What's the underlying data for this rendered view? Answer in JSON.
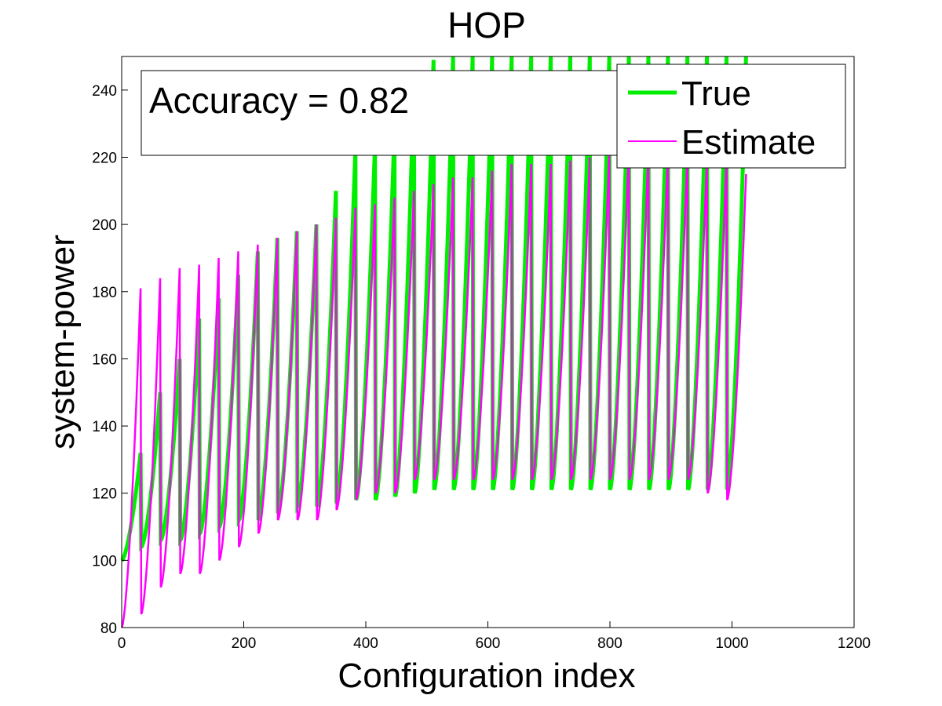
{
  "chart_data": {
    "type": "line",
    "title": "HOP",
    "xlabel": "Configuration index",
    "ylabel": "system-power",
    "xlim": [
      0,
      1200
    ],
    "ylim": [
      80,
      250
    ],
    "x_ticks": [
      0,
      200,
      400,
      600,
      800,
      1000,
      1200
    ],
    "y_ticks": [
      80,
      100,
      120,
      140,
      160,
      180,
      200,
      220,
      240
    ],
    "annotation": "Accuracy = 0.82",
    "legend_position": "top-right",
    "grid": false,
    "block_size": 32,
    "n_points": 1024,
    "series": [
      {
        "name": "True",
        "color": "#00ee00",
        "block_min": [
          100,
          104,
          106,
          106,
          108,
          110,
          112,
          112,
          114,
          116,
          116,
          117,
          118,
          118,
          119,
          120,
          121,
          121,
          121,
          121,
          121,
          121,
          121,
          121,
          121,
          121,
          121,
          121,
          121,
          121,
          121,
          121
        ],
        "block_max": [
          132,
          150,
          160,
          172,
          178,
          185,
          192,
          196,
          198,
          200,
          210,
          223,
          224,
          229,
          244,
          249,
          250,
          250,
          250,
          250,
          250,
          250,
          250,
          250,
          250,
          250,
          250,
          250,
          250,
          250,
          250,
          250
        ]
      },
      {
        "name": "Estimate",
        "color": "#ff00ff",
        "block_min": [
          80,
          84,
          92,
          96,
          96,
          100,
          104,
          108,
          112,
          112,
          112,
          115,
          118,
          120,
          120,
          124,
          124,
          124,
          124,
          124,
          124,
          124,
          124,
          124,
          124,
          124,
          124,
          124,
          124,
          124,
          120,
          118
        ],
        "block_max": [
          181,
          184,
          187,
          188,
          190,
          192,
          194,
          196,
          198,
          200,
          202,
          205,
          206,
          208,
          210,
          212,
          214,
          214,
          216,
          218,
          218,
          218,
          219,
          220,
          222,
          223,
          222,
          222,
          222,
          220,
          220,
          215
        ]
      }
    ]
  }
}
